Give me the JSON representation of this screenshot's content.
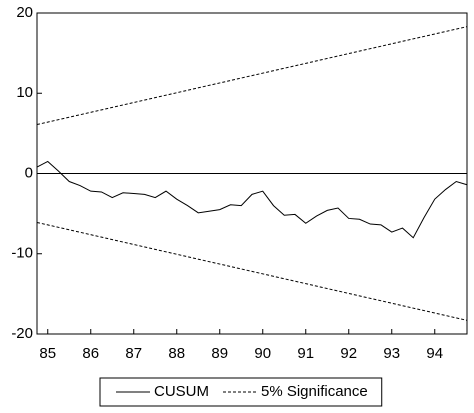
{
  "chart_data": {
    "type": "line",
    "x": [
      1984.75,
      1985.0,
      1985.25,
      1985.5,
      1985.75,
      1986.0,
      1986.25,
      1986.5,
      1986.75,
      1987.0,
      1987.25,
      1987.5,
      1987.75,
      1988.0,
      1988.25,
      1988.5,
      1988.75,
      1989.0,
      1989.25,
      1989.5,
      1989.75,
      1990.0,
      1990.25,
      1990.5,
      1990.75,
      1991.0,
      1991.25,
      1991.5,
      1991.75,
      1992.0,
      1992.25,
      1992.5,
      1992.75,
      1993.0,
      1993.25,
      1993.5,
      1993.75,
      1994.0,
      1994.25,
      1994.5,
      1994.75
    ],
    "series": [
      {
        "name": "CUSUM",
        "color": "#000000",
        "dash": false,
        "values": [
          0.8,
          1.5,
          0.3,
          -1.0,
          -1.5,
          -2.2,
          -2.3,
          -3.0,
          -2.4,
          -2.5,
          -2.6,
          -3.0,
          -2.2,
          -3.2,
          -4.0,
          -4.9,
          -4.7,
          -4.5,
          -3.9,
          -4.0,
          -2.6,
          -2.2,
          -4.0,
          -5.2,
          -5.1,
          -6.2,
          -5.3,
          -4.6,
          -4.3,
          -5.6,
          -5.7,
          -6.3,
          -6.4,
          -7.3,
          -6.8,
          -8.0,
          -5.5,
          -3.2,
          -2.0,
          -1.0,
          -1.4
        ]
      },
      {
        "name": "5% Significance",
        "color": "#000000",
        "dash": true,
        "x": [
          1984.75,
          1994.75
        ],
        "values": [
          6.1,
          18.3
        ],
        "lower": [
          -6.1,
          -18.3
        ]
      }
    ],
    "xlim": [
      1984.75,
      1994.75
    ],
    "xticks": [
      {
        "value": 1985,
        "label": "85"
      },
      {
        "value": 1986,
        "label": "86"
      },
      {
        "value": 1987,
        "label": "87"
      },
      {
        "value": 1988,
        "label": "88"
      },
      {
        "value": 1989,
        "label": "89"
      },
      {
        "value": 1990,
        "label": "90"
      },
      {
        "value": 1991,
        "label": "91"
      },
      {
        "value": 1992,
        "label": "92"
      },
      {
        "value": 1993,
        "label": "93"
      },
      {
        "value": 1994,
        "label": "94"
      }
    ],
    "ylim": [
      -20,
      20
    ],
    "yticks": [
      20,
      10,
      0,
      -10,
      -20
    ],
    "zero_line": true,
    "legend": "bottom"
  }
}
